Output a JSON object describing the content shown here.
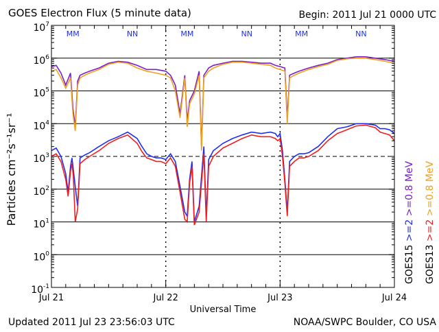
{
  "colors": {
    "goes15_2mev": "#1e2ef0",
    "goes13_2mev": "#f01e1e",
    "goes15_08mev": "#7a1ec8",
    "goes13_08mev": "#f0a01e",
    "mm_marker": "#1e2ef0",
    "nn_marker": "#1e2ef0",
    "axis": "#000000"
  },
  "chart_data": {
    "type": "line",
    "title": "GOES Electron Flux (5 minute data)",
    "begin_label": "Begin: 2011 Jul 21 0000 UTC",
    "xlabel": "Universal Time",
    "ylabel": "Particles cm⁻²s⁻¹sr⁻¹",
    "updated_label": "Updated 2011 Jul 23 23:56:03 UTC",
    "credit_label": "NOAA/SWPC Boulder, CO USA",
    "x_unit": "hours since 2011 Jul 21 0000 UTC",
    "xlim": [
      0,
      72
    ],
    "x_ticks": [
      {
        "x": 0,
        "label": "Jul 21"
      },
      {
        "x": 24,
        "label": "Jul 22"
      },
      {
        "x": 48,
        "label": "Jul 23"
      },
      {
        "x": 72,
        "label": "Jul 24"
      }
    ],
    "y_scale": "log",
    "ylim": [
      0.1,
      10000000
    ],
    "y_ticks": [
      {
        "base": "10",
        "exp": "7"
      },
      {
        "base": "10",
        "exp": "6"
      },
      {
        "base": "10",
        "exp": "5"
      },
      {
        "base": "10",
        "exp": "4"
      },
      {
        "base": "10",
        "exp": "3"
      },
      {
        "base": "10",
        "exp": "2"
      },
      {
        "base": "10",
        "exp": "1"
      },
      {
        "base": "10",
        "exp": "0"
      },
      {
        "base": "10",
        "exp": "-1"
      }
    ],
    "grid": "horizontal solid at each decade, dashed at 10^3",
    "markers": [
      {
        "label": "MM",
        "x": 4.5
      },
      {
        "label": "NN",
        "x": 17
      },
      {
        "label": "MM",
        "x": 28.5
      },
      {
        "label": "NN",
        "x": 41
      },
      {
        "label": "MM",
        "x": 52.5
      },
      {
        "label": "NN",
        "x": 65
      }
    ],
    "legend": [
      {
        "prefix": "GOES15",
        "text": ">=2",
        "text2": ">=0.8  MeV",
        "color_key": "goes15"
      },
      {
        "prefix": "GOES13",
        "text": ">=2",
        "text2": ">=0.8  MeV",
        "color_key": "goes13"
      }
    ],
    "series": [
      {
        "name": "GOES15 >=2 MeV",
        "color": "#1e2ef0",
        "x": [
          0,
          1,
          2,
          3,
          3.5,
          4,
          4.3,
          4.6,
          5,
          5.5,
          6,
          7,
          8,
          10,
          12,
          14,
          16,
          18,
          19,
          20,
          21,
          22,
          23,
          24,
          25,
          26,
          27,
          28,
          28.5,
          29,
          29.5,
          30,
          31,
          32,
          32.5,
          33,
          34,
          36,
          38,
          40,
          42,
          44,
          46,
          47,
          47.5,
          48,
          48.5,
          49,
          49.5,
          50,
          51,
          52,
          53,
          54,
          56,
          58,
          60,
          62,
          64,
          66,
          68,
          69,
          70,
          71,
          72
        ],
        "y": [
          1500,
          1800,
          1000,
          300,
          80,
          500,
          900,
          400,
          120,
          30,
          900,
          1100,
          1300,
          2000,
          3000,
          4000,
          5500,
          3500,
          2000,
          1200,
          1000,
          900,
          900,
          800,
          1200,
          700,
          120,
          20,
          15,
          200,
          700,
          10,
          30,
          2000,
          15,
          800,
          1500,
          2500,
          3500,
          4500,
          5500,
          5000,
          5500,
          5000,
          4000,
          5000,
          1500,
          200,
          20,
          700,
          1000,
          1200,
          1200,
          1300,
          2000,
          4000,
          7000,
          8000,
          10000,
          10000,
          9000,
          7000,
          7000,
          6500,
          5000
        ]
      },
      {
        "name": "GOES13 >=2 MeV",
        "color": "#f01e1e",
        "x": [
          0,
          1,
          2,
          3,
          3.5,
          4,
          4.3,
          4.6,
          5,
          5.5,
          6,
          7,
          8,
          10,
          12,
          14,
          16,
          18,
          19,
          20,
          21,
          22,
          23,
          24,
          25,
          26,
          27,
          28,
          28.5,
          29,
          29.5,
          30,
          31,
          32,
          32.5,
          33,
          34,
          36,
          38,
          40,
          42,
          44,
          46,
          47,
          47.5,
          48,
          48.5,
          49,
          49.5,
          50,
          51,
          52,
          53,
          54,
          56,
          58,
          60,
          62,
          64,
          66,
          68,
          69,
          70,
          71,
          72
        ],
        "y": [
          1000,
          1200,
          700,
          200,
          60,
          350,
          600,
          250,
          10,
          25,
          600,
          800,
          1000,
          1500,
          2500,
          3500,
          4500,
          2500,
          1400,
          900,
          800,
          700,
          700,
          600,
          900,
          500,
          80,
          12,
          10,
          150,
          500,
          8,
          20,
          1200,
          10,
          500,
          1000,
          1800,
          2500,
          3500,
          4500,
          4000,
          4000,
          3500,
          3000,
          3500,
          1000,
          150,
          15,
          500,
          700,
          900,
          900,
          1000,
          1500,
          3000,
          5000,
          6500,
          8500,
          9000,
          7500,
          5500,
          5000,
          4500,
          3000
        ]
      },
      {
        "name": "GOES15 >=0.8 MeV",
        "color": "#7a1ec8",
        "x": [
          0,
          1,
          2,
          3,
          4,
          4.5,
          5,
          5.5,
          6,
          7,
          8,
          10,
          12,
          14,
          16,
          18,
          20,
          22,
          24,
          25,
          26,
          27,
          28,
          28.5,
          29,
          30,
          31,
          31.5,
          32,
          33,
          34,
          36,
          38,
          40,
          42,
          44,
          46,
          47,
          48,
          49,
          49.5,
          50,
          51,
          52,
          54,
          56,
          58,
          60,
          62,
          64,
          66,
          68,
          70,
          72
        ],
        "y": [
          550000,
          600000,
          350000,
          150000,
          350000,
          30000,
          8000,
          200000,
          300000,
          350000,
          400000,
          500000,
          700000,
          800000,
          750000,
          600000,
          450000,
          450000,
          400000,
          300000,
          150000,
          20000,
          300000,
          12000,
          50000,
          100000,
          400000,
          2000,
          300000,
          500000,
          600000,
          700000,
          800000,
          800000,
          750000,
          700000,
          700000,
          600000,
          550000,
          500000,
          15000,
          300000,
          350000,
          400000,
          500000,
          600000,
          700000,
          900000,
          1000000,
          1100000,
          1100000,
          1000000,
          900000,
          800000
        ]
      },
      {
        "name": "GOES13 >=0.8 MeV",
        "color": "#f0a01e",
        "x": [
          0,
          1,
          2,
          3,
          4,
          4.5,
          5,
          5.5,
          6,
          7,
          8,
          10,
          12,
          14,
          16,
          18,
          20,
          22,
          24,
          25,
          26,
          27,
          28,
          28.5,
          29,
          30,
          31,
          31.5,
          32,
          33,
          34,
          36,
          38,
          40,
          42,
          44,
          46,
          47,
          48,
          49,
          49.5,
          50,
          51,
          52,
          54,
          56,
          58,
          60,
          62,
          64,
          66,
          68,
          70,
          72
        ],
        "y": [
          400000,
          450000,
          250000,
          120000,
          250000,
          20000,
          6000,
          150000,
          250000,
          300000,
          350000,
          450000,
          650000,
          750000,
          700000,
          500000,
          400000,
          350000,
          300000,
          250000,
          100000,
          15000,
          250000,
          8000,
          40000,
          80000,
          300000,
          1500,
          250000,
          400000,
          500000,
          650000,
          750000,
          750000,
          700000,
          650000,
          600000,
          500000,
          450000,
          400000,
          10000,
          250000,
          300000,
          350000,
          450000,
          550000,
          650000,
          850000,
          950000,
          1000000,
          1000000,
          900000,
          800000,
          700000
        ]
      }
    ]
  }
}
